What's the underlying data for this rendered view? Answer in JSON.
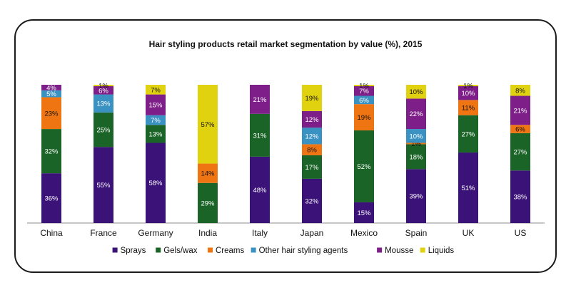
{
  "chart_data": {
    "type": "bar",
    "stacked": true,
    "title": "Hair styling products retail market segmentation by value (%), 2015",
    "categories": [
      "China",
      "France",
      "Germany",
      "India",
      "Italy",
      "Japan",
      "Mexico",
      "Spain",
      "UK",
      "US"
    ],
    "ylim": [
      0,
      100
    ],
    "grid": false,
    "legend_position": "bottom",
    "series": [
      {
        "name": "Sprays",
        "color": "#3b1278",
        "label_color": "#ffffff",
        "values": [
          36,
          55,
          58,
          0,
          48,
          32,
          15,
          39,
          51,
          38
        ],
        "labels": [
          "36%",
          "55%",
          "58%",
          "",
          "48%",
          "32%",
          "15%",
          "39%",
          "51%",
          "38%"
        ]
      },
      {
        "name": "Gels/wax",
        "color": "#1b6428",
        "label_color": "#ffffff",
        "values": [
          32,
          25,
          13,
          29,
          31,
          17,
          52,
          18,
          27,
          27
        ],
        "labels": [
          "32%",
          "25%",
          "13%",
          "29%",
          "31%",
          "17%",
          "52%",
          "18%",
          "27%",
          "27%"
        ]
      },
      {
        "name": "Creams",
        "color": "#ee7512",
        "label_color": "#111111",
        "values": [
          23,
          0,
          0,
          14,
          0,
          8,
          19,
          1,
          11,
          6
        ],
        "labels": [
          "23%",
          "",
          "",
          "14%",
          "",
          "8%",
          "19%",
          "1%",
          "11%",
          "6%"
        ]
      },
      {
        "name": "Other hair styling agents",
        "color": "#3a92c2",
        "label_color": "#ffffff",
        "values": [
          5,
          13,
          7,
          0,
          0,
          12,
          6,
          10,
          0,
          0
        ],
        "labels": [
          "5%",
          "13%",
          "7%",
          "",
          "",
          "12%",
          "6%",
          "10%",
          "",
          ""
        ]
      },
      {
        "name": "Mousse",
        "color": "#7e1e88",
        "label_color": "#ffffff",
        "values": [
          4,
          6,
          15,
          0,
          21,
          12,
          7,
          22,
          10,
          21
        ],
        "labels": [
          "4%",
          "6%",
          "15%",
          "",
          "21%",
          "12%",
          "7%",
          "22%",
          "10%",
          "21%"
        ]
      },
      {
        "name": "Liquids",
        "color": "#e1d20f",
        "label_color": "#111111",
        "values": [
          0,
          1,
          7,
          57,
          0,
          19,
          1,
          10,
          1,
          8
        ],
        "labels": [
          "",
          "1%",
          "7%",
          "57%",
          "",
          "19%",
          "1%",
          "10%",
          "1%",
          "8%"
        ]
      }
    ]
  }
}
